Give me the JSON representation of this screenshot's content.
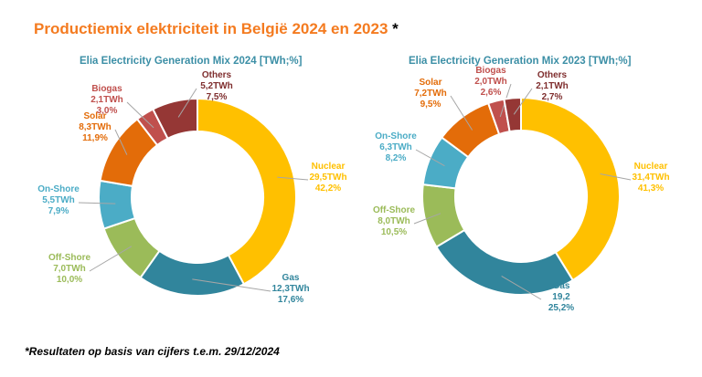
{
  "header": {
    "title": "Productiemix elektriciteit in België 2024 en 2023",
    "title_marker": "*"
  },
  "footnote": "*Resultaten op basis van cijfers t.e.m. 29/12/2024",
  "colors": {
    "Nuclear": "#FFC000",
    "Gas": "#31859C",
    "Off-Shore": "#9BBB59",
    "On-Shore": "#4BACC6",
    "Solar": "#E36C09",
    "Biogas": "#C0504D",
    "Others": "#953735"
  },
  "label_colors": {
    "Nuclear": "#FFC000",
    "Gas": "#31859C",
    "Off-Shore": "#9BBB59",
    "On-Shore": "#4BACC6",
    "Solar": "#E36C09",
    "Biogas": "#C0504D",
    "Others": "#7F2E2E"
  },
  "chart_data": [
    {
      "type": "pie",
      "variant": "donut",
      "title": "Elia Electricity Generation Mix 2024 [TWh;%]",
      "categories": [
        "Nuclear",
        "Gas",
        "Off-Shore",
        "On-Shore",
        "Solar",
        "Biogas",
        "Others"
      ],
      "values": [
        29.5,
        12.3,
        7.0,
        5.5,
        8.3,
        2.1,
        5.2
      ],
      "value_labels": [
        "29,5TWh",
        "12,3TWh",
        "7,0TWh",
        "5,5TWh",
        "8,3TWh",
        "2,1TWh",
        "5,2TWh"
      ],
      "percent_labels": [
        "42,2%",
        "17,6%",
        "10,0%",
        "7,9%",
        "11,9%",
        "3,0%",
        "7,5%"
      ]
    },
    {
      "type": "pie",
      "variant": "donut",
      "title": "Elia Electricity Generation Mix 2023 [TWh;%]",
      "categories": [
        "Nuclear",
        "Gas",
        "Off-Shore",
        "On-Shore",
        "Solar",
        "Biogas",
        "Others"
      ],
      "values": [
        31.4,
        19.2,
        8.0,
        6.3,
        7.2,
        2.0,
        2.1
      ],
      "value_labels": [
        "31,4TWh",
        "19,2",
        "8,0TWh",
        "6,3TWh",
        "7,2TWh",
        "2,0TWh",
        "2,1TWh"
      ],
      "percent_labels": [
        "41,3%",
        "25,2%",
        "10,5%",
        "8,2%",
        "9,5%",
        "2,6%",
        "2,7%"
      ]
    }
  ]
}
